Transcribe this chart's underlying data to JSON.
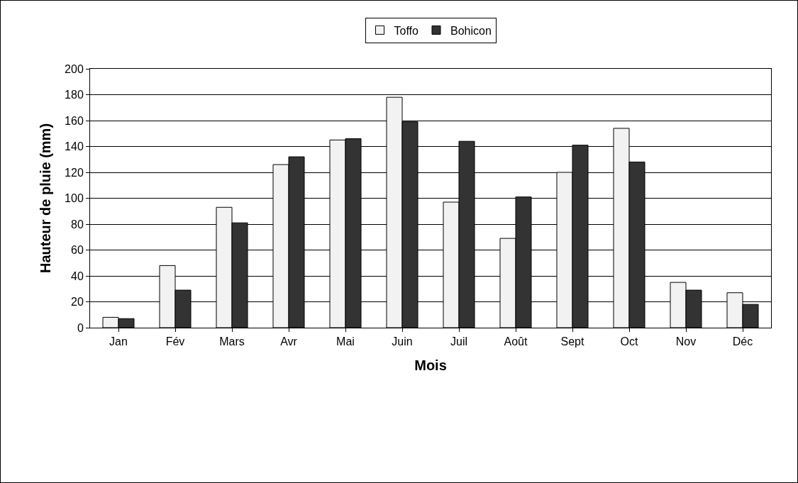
{
  "chart_data": {
    "type": "bar",
    "xlabel": "Mois",
    "ylabel": "Hauteur de pluie (mm)",
    "categories": [
      "Jan",
      "Fév",
      "Mars",
      "Avr",
      "Mai",
      "Juin",
      "Juil",
      "Août",
      "Sept",
      "Oct",
      "Nov",
      "Déc"
    ],
    "series": [
      {
        "name": "Toffo",
        "color": "#f2f2f2",
        "values": [
          8,
          48,
          93,
          126,
          145,
          178,
          97,
          69,
          120,
          154,
          35,
          27
        ]
      },
      {
        "name": "Bohicon",
        "color": "#333333",
        "values": [
          7,
          29,
          81,
          132,
          146,
          159,
          144,
          101,
          141,
          128,
          29,
          18
        ]
      }
    ],
    "ylim": [
      0,
      200
    ],
    "yticks": [
      0,
      20,
      40,
      60,
      80,
      100,
      120,
      140,
      160,
      180,
      200
    ],
    "grid": "y",
    "legend": "top"
  }
}
